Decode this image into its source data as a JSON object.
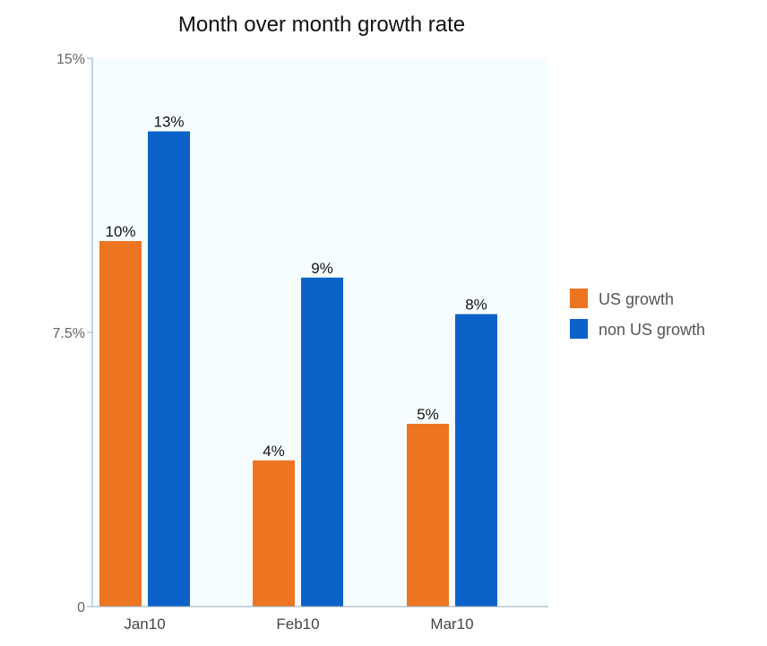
{
  "chart_data": {
    "type": "bar",
    "title": "Month over month growth rate",
    "xlabel": "",
    "ylabel": "",
    "categories": [
      "Jan10",
      "Feb10",
      "Mar10"
    ],
    "series": [
      {
        "name": "US growth",
        "values": [
          10,
          4,
          5
        ],
        "labels": [
          "10%",
          "4%",
          "5%"
        ],
        "color": "#ed7522"
      },
      {
        "name": "non US growth",
        "values": [
          13,
          9,
          8
        ],
        "labels": [
          "13%",
          "9%",
          "8%"
        ],
        "color": "#0b63c9"
      }
    ],
    "ylim": [
      0,
      15
    ],
    "yticks": [
      {
        "value": 0,
        "label": "0"
      },
      {
        "value": 7.5,
        "label": "7.5%"
      },
      {
        "value": 15,
        "label": "15%"
      }
    ],
    "grid": false,
    "legend": "right",
    "colors": {
      "plot_background": "#f6fdff",
      "axis": "#9aaabb"
    }
  }
}
